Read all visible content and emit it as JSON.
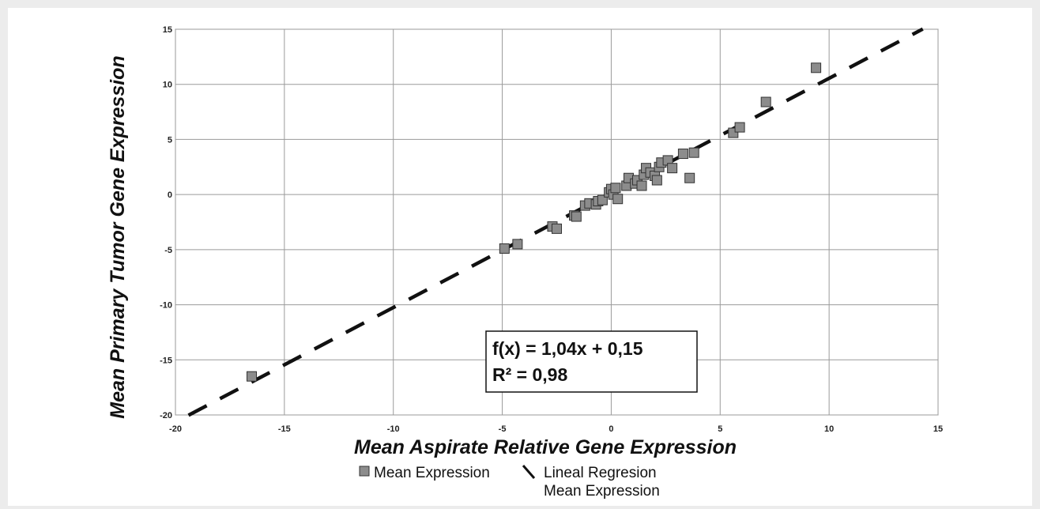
{
  "chart_data": {
    "type": "scatter",
    "xlabel": "Mean Aspirate Relative Gene Expression",
    "ylabel": "Mean Primary Tumor Gene Expression",
    "xlim": [
      -20,
      15
    ],
    "ylim": [
      -20,
      15
    ],
    "xticks": [
      -20,
      -15,
      -10,
      -5,
      0,
      5,
      10,
      15
    ],
    "yticks": [
      -20,
      -15,
      -10,
      -5,
      0,
      5,
      10,
      15
    ],
    "xtick_labels": [
      "-20",
      "-15",
      "-10",
      "-5",
      "0",
      "5",
      "10",
      "15"
    ],
    "ytick_labels": [
      "-20",
      "-15",
      "-10",
      "-5",
      "0",
      "5",
      "10",
      "15"
    ],
    "grid": true,
    "legend_position": "bottom",
    "series": [
      {
        "name": "Mean Expression",
        "marker": "square",
        "color": "#8c8c8c",
        "points": [
          [
            -16.5,
            -16.5
          ],
          [
            -4.9,
            -4.9
          ],
          [
            -4.3,
            -4.5
          ],
          [
            -2.7,
            -2.9
          ],
          [
            -2.5,
            -3.1
          ],
          [
            -1.7,
            -1.9
          ],
          [
            -1.6,
            -2.0
          ],
          [
            -1.2,
            -1.0
          ],
          [
            -1.0,
            -0.8
          ],
          [
            -0.7,
            -0.9
          ],
          [
            -0.6,
            -0.6
          ],
          [
            -0.4,
            -0.5
          ],
          [
            -0.1,
            0.2
          ],
          [
            0.0,
            0.5
          ],
          [
            0.1,
            0.0
          ],
          [
            0.2,
            0.6
          ],
          [
            0.3,
            -0.4
          ],
          [
            0.7,
            0.8
          ],
          [
            0.8,
            1.5
          ],
          [
            1.1,
            1.0
          ],
          [
            1.2,
            1.3
          ],
          [
            1.4,
            0.8
          ],
          [
            1.5,
            1.8
          ],
          [
            1.6,
            2.4
          ],
          [
            1.8,
            2.0
          ],
          [
            2.0,
            1.7
          ],
          [
            2.1,
            1.3
          ],
          [
            2.2,
            2.5
          ],
          [
            2.3,
            2.9
          ],
          [
            2.6,
            3.1
          ],
          [
            2.8,
            2.4
          ],
          [
            3.3,
            3.7
          ],
          [
            3.6,
            1.5
          ],
          [
            3.8,
            3.8
          ],
          [
            5.6,
            5.6
          ],
          [
            5.9,
            6.1
          ],
          [
            7.1,
            8.4
          ],
          [
            9.4,
            11.5
          ]
        ]
      },
      {
        "name": "Lineal Regresion Mean Expression",
        "kind": "line",
        "style": "dashed",
        "color": "#111111",
        "slope": 1.04,
        "intercept": 0.15,
        "x_range": [
          -19.4,
          14.3
        ]
      }
    ],
    "annotation": {
      "line1": "f(x) = 1,04x + 0,15",
      "line2": "R² = 0,98"
    },
    "legend": {
      "marker_label": "Mean Expression",
      "line_label_1": "Lineal Regresion",
      "line_label_2": "Mean Expression"
    }
  }
}
